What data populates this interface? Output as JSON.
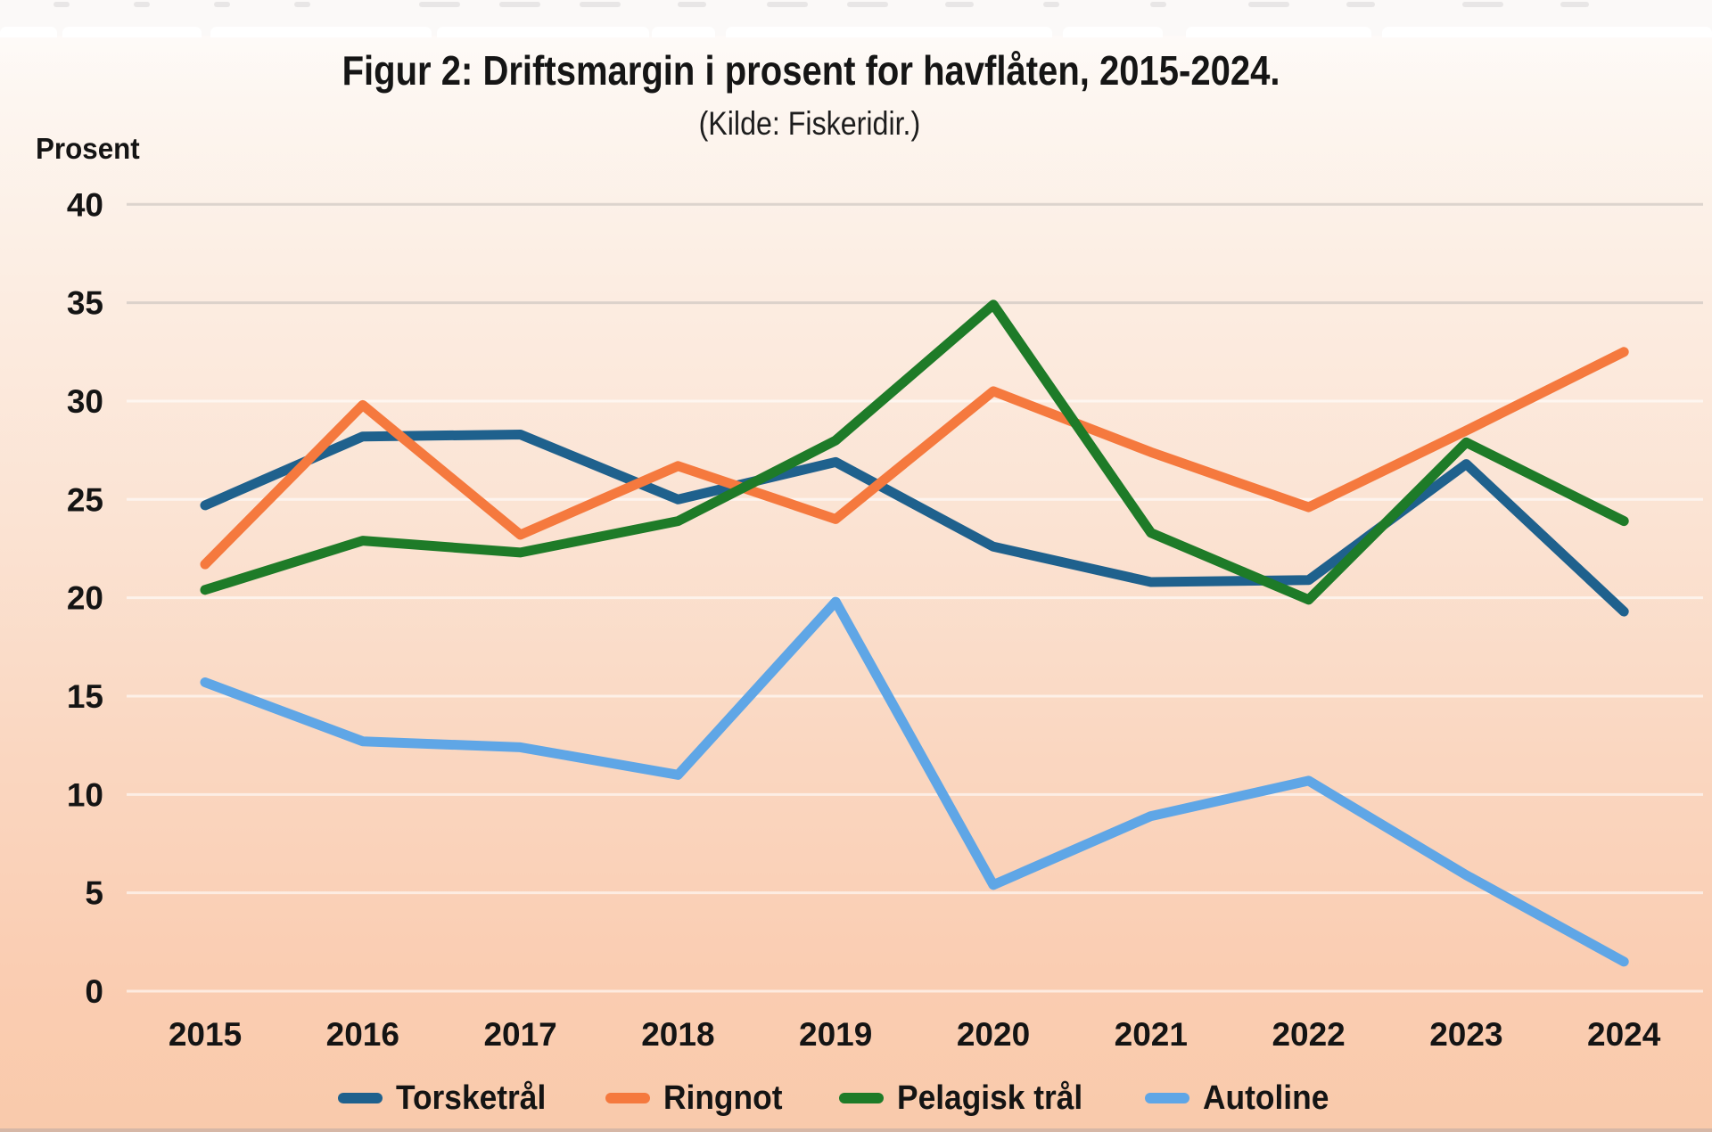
{
  "chart": {
    "title": "Figur 2: Driftsmargin i prosent for havflåten, 2015-2024.",
    "subtitle": "(Kilde: Fiskeridir.)",
    "ylabel": "Prosent"
  },
  "chart_data": {
    "type": "line",
    "title": "Figur 2: Driftsmargin i prosent for havflåten, 2015-2024.",
    "subtitle": "(Kilde: Fiskeridir.)",
    "ylabel": "Prosent",
    "xlabel": "",
    "categories": [
      "2015",
      "2016",
      "2017",
      "2018",
      "2019",
      "2020",
      "2021",
      "2022",
      "2023",
      "2024"
    ],
    "series": [
      {
        "name": "Torsketrål",
        "color": "#1F618D",
        "values": [
          24.7,
          28.2,
          28.3,
          25.0,
          26.9,
          22.6,
          20.8,
          20.9,
          26.8,
          19.3
        ]
      },
      {
        "name": "Ringnot",
        "color": "#F5793E",
        "values": [
          21.7,
          29.8,
          23.2,
          26.7,
          24.0,
          30.5,
          27.4,
          24.6,
          28.5,
          32.5
        ]
      },
      {
        "name": "Pelagisk trål",
        "color": "#1E7B28",
        "values": [
          20.4,
          22.9,
          22.3,
          23.9,
          28.0,
          34.9,
          23.3,
          19.9,
          27.9,
          23.9
        ]
      },
      {
        "name": "Autoline",
        "color": "#5FA6E6",
        "values": [
          15.7,
          12.7,
          12.4,
          11.0,
          19.8,
          5.4,
          8.9,
          10.7,
          5.9,
          1.5
        ]
      }
    ],
    "ylim": [
      0,
      40
    ],
    "yticks": [
      0,
      5,
      10,
      15,
      20,
      25,
      30,
      35,
      40
    ],
    "grid": true,
    "legend_position": "bottom",
    "draw_order": [
      "Autoline",
      "Torsketrål",
      "Ringnot",
      "Pelagisk trål"
    ],
    "line_width": 11,
    "text_color": "#141414"
  }
}
